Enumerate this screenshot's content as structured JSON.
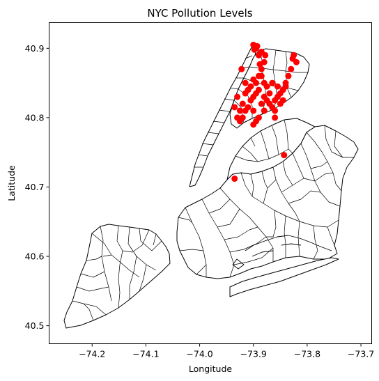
{
  "chart_data": {
    "type": "scatter",
    "title": "NYC Pollution Levels",
    "xlabel": "Longitude",
    "ylabel": "Latitude",
    "xlim": [
      -74.28,
      -73.68
    ],
    "ylim": [
      40.474,
      40.937
    ],
    "xticks": [
      -74.2,
      -74.1,
      -74.0,
      -73.9,
      -73.8,
      -73.7
    ],
    "xtick_labels": [
      "−74.2",
      "−74.1",
      "−74.0",
      "−73.9",
      "−73.8",
      "−73.7"
    ],
    "yticks": [
      40.5,
      40.6,
      40.7,
      40.8,
      40.9
    ],
    "ytick_labels": [
      "40.5",
      "40.6",
      "40.7",
      "40.8",
      "40.9"
    ],
    "grid": false,
    "legend": "none",
    "colors": {
      "boundaries": "#000000",
      "pollution": "#ff0000",
      "background": "#ffffff"
    },
    "pollution_points": [
      [
        -73.905,
        40.825
      ],
      [
        -73.91,
        40.815
      ],
      [
        -73.915,
        40.81
      ],
      [
        -73.92,
        40.8
      ],
      [
        -73.925,
        40.795
      ],
      [
        -73.9,
        40.83
      ],
      [
        -73.895,
        40.835
      ],
      [
        -73.89,
        40.84
      ],
      [
        -73.885,
        40.82
      ],
      [
        -73.88,
        40.83
      ],
      [
        -73.875,
        40.825
      ],
      [
        -73.87,
        40.82
      ],
      [
        -73.865,
        40.815
      ],
      [
        -73.86,
        40.81
      ],
      [
        -73.855,
        40.83
      ],
      [
        -73.85,
        40.835
      ],
      [
        -73.845,
        40.84
      ],
      [
        -73.84,
        40.845
      ],
      [
        -73.895,
        40.85
      ],
      [
        -73.89,
        40.86
      ],
      [
        -73.885,
        40.87
      ],
      [
        -73.88,
        40.88
      ],
      [
        -73.89,
        40.89
      ],
      [
        -73.895,
        40.9
      ],
      [
        -73.9,
        40.905
      ],
      [
        -73.885,
        40.895
      ],
      [
        -73.825,
        40.89
      ],
      [
        -73.82,
        40.88
      ],
      [
        -73.83,
        40.87
      ],
      [
        -73.835,
        40.86
      ],
      [
        -73.84,
        40.85
      ],
      [
        -73.91,
        40.84
      ],
      [
        -73.915,
        40.85
      ],
      [
        -73.92,
        40.82
      ],
      [
        -73.925,
        40.81
      ],
      [
        -73.93,
        40.8
      ],
      [
        -73.9,
        40.81
      ],
      [
        -73.88,
        40.81
      ],
      [
        -73.86,
        40.825
      ],
      [
        -73.87,
        40.835
      ],
      [
        -73.875,
        40.845
      ],
      [
        -73.865,
        40.85
      ],
      [
        -73.855,
        40.845
      ],
      [
        -73.85,
        40.82
      ],
      [
        -73.845,
        40.825
      ],
      [
        -73.88,
        40.85
      ],
      [
        -73.885,
        40.86
      ],
      [
        -73.9,
        40.855
      ],
      [
        -73.905,
        40.845
      ],
      [
        -73.915,
        40.835
      ],
      [
        -73.93,
        40.83
      ],
      [
        -73.935,
        40.815
      ],
      [
        -73.89,
        40.8
      ],
      [
        -73.895,
        40.795
      ],
      [
        -73.9,
        40.79
      ],
      [
        -73.86,
        40.8
      ],
      [
        -73.843,
        40.746
      ],
      [
        -73.935,
        40.712
      ],
      [
        -73.922,
        40.87
      ],
      [
        -73.878,
        40.89
      ],
      [
        -73.827,
        40.885
      ],
      [
        -73.893,
        40.903
      ],
      [
        -73.898,
        40.898
      ],
      [
        -73.888,
        40.877
      ]
    ]
  }
}
